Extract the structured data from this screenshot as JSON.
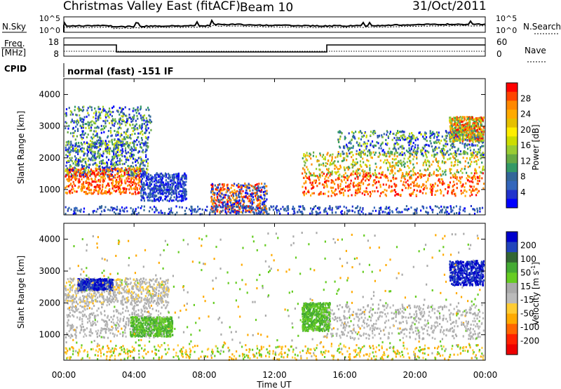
{
  "header": {
    "station": "Christmas Valley East (fitACF)",
    "beam": "Beam 10",
    "date": "31/Oct/2011"
  },
  "noise_panel": {
    "left_label": "N.Sky",
    "right_label": "N.Search",
    "left_ticks": [
      "10^5",
      "10^0"
    ],
    "right_ticks": [
      "10^5",
      "10^0"
    ]
  },
  "freq_panel": {
    "left_label_1": "Freq.",
    "left_label_2": "[MHz]",
    "right_label": "Nave",
    "left_ticks": [
      "18",
      "8"
    ],
    "right_ticks": [
      "60",
      "0"
    ]
  },
  "cpid_panel": {
    "label": "CPID",
    "text": "normal (fast) -151 IF"
  },
  "chart_data": [
    {
      "type": "heatmap",
      "name": "power",
      "ylabel": "Slant Range [km]",
      "yticks": [
        "4000",
        "3000",
        "2000",
        "1000"
      ],
      "ylim": [
        200,
        4500
      ],
      "colorbar_label": "Power [dB]",
      "colorbar_ticks": [
        "28",
        "24",
        "20",
        "16",
        "12",
        "8",
        "4"
      ],
      "colorbar_colors": [
        "#ff0000",
        "#ff4400",
        "#ff8800",
        "#ffaa00",
        "#e6c000",
        "#ffee00",
        "#ccdd00",
        "#99cc33",
        "#66aa44",
        "#339966",
        "#336699",
        "#3366bb",
        "#2233cc",
        "#0000ff"
      ]
    },
    {
      "type": "heatmap",
      "name": "velocity",
      "ylabel": "Slant Range [km]",
      "yticks": [
        "4000",
        "3000",
        "2000",
        "1000"
      ],
      "ylim": [
        200,
        4500
      ],
      "colorbar_label": "Velocity [m s",
      "colorbar_label_sup": "-1",
      "colorbar_label_end": "]",
      "colorbar_ticks": [
        "200",
        "100",
        "50",
        "15",
        "-15",
        "-50",
        "-100",
        "-200"
      ],
      "colorbar_colors": [
        "#0000cc",
        "#2244bb",
        "#336633",
        "#44aa33",
        "#66cc22",
        "#aaaaaa",
        "#bbbbbb",
        "#ffcc33",
        "#ffaa00",
        "#ff6600",
        "#ff2200",
        "#ee0000"
      ]
    }
  ],
  "xaxis": {
    "label": "Time UT",
    "ticks": [
      "00:00",
      "04:00",
      "08:00",
      "12:00",
      "16:00",
      "20:00",
      "00:00"
    ]
  }
}
